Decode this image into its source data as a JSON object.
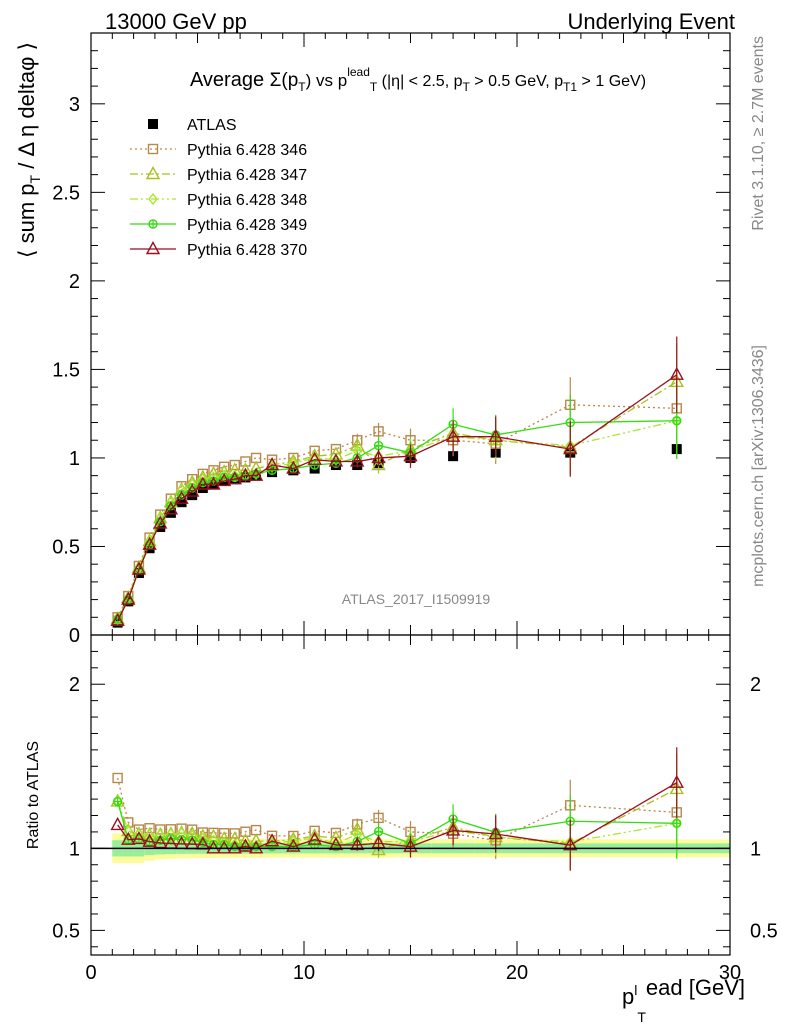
{
  "header": {
    "left": "13000 GeV pp",
    "right": "Underlying Event"
  },
  "side": {
    "rivet": "Rivet 3.1.10, ≥ 2.7M events",
    "mcplots": "mcplots.cern.ch [arXiv:1306.3436]"
  },
  "labels": {
    "title": "Average Σ(p_T) vs p_T^lead (|η| < 2.5, p_T > 0.5 GeV, p_T1 > 1 GeV)",
    "ylabel_main": "⟨ sum p_T / Δ η deltaφ ⟩",
    "ylabel_ratio": "Ratio to ATLAS",
    "xlabel": "p_T^lead [GeV]",
    "analysis": "ATLAS_2017_I1509919"
  },
  "colors": {
    "ATLAS": "#000000",
    "p346": "#b8874a",
    "p347": "#a6c21e",
    "p348": "#a8e62e",
    "p349": "#33dd11",
    "p370": "#9b0f1e",
    "band_outer": "#fdfc9a",
    "band_inner": "#98ee9a"
  },
  "chart_data": {
    "type": "scatter",
    "xlim": [
      0,
      30
    ],
    "ylim_main": [
      0,
      3.4
    ],
    "ylim_ratio": [
      0.35,
      2.3
    ],
    "x_ticks": [
      0,
      10,
      20,
      30
    ],
    "y_ticks_main": [
      0,
      0.5,
      1,
      1.5,
      2,
      2.5,
      3
    ],
    "y_ticks_ratio": [
      0.5,
      1,
      2
    ],
    "x": [
      1.25,
      1.75,
      2.25,
      2.75,
      3.25,
      3.75,
      4.25,
      4.75,
      5.25,
      5.75,
      6.25,
      6.75,
      7.25,
      7.75,
      8.5,
      9.5,
      10.5,
      11.5,
      12.5,
      13.5,
      15,
      17,
      19,
      22.5,
      27.5
    ],
    "legend_position": "top-left",
    "series": [
      {
        "name": "ATLAS",
        "key": "ATLAS",
        "marker": "filled-square",
        "values": [
          0.07,
          0.19,
          0.35,
          0.49,
          0.61,
          0.69,
          0.75,
          0.79,
          0.83,
          0.85,
          0.87,
          0.88,
          0.89,
          0.9,
          0.92,
          0.93,
          0.94,
          0.96,
          0.96,
          0.97,
          1.0,
          1.01,
          1.03,
          1.03,
          1.05
        ]
      },
      {
        "name": "Pythia 6.428 346",
        "key": "p346",
        "marker": "open-square",
        "dash": "2,3",
        "values": [
          0.1,
          0.22,
          0.39,
          0.55,
          0.68,
          0.77,
          0.84,
          0.88,
          0.91,
          0.93,
          0.95,
          0.96,
          0.98,
          1.0,
          0.99,
          1.0,
          1.04,
          1.05,
          1.1,
          1.15,
          1.1,
          1.1,
          1.08,
          1.3,
          1.28
        ]
      },
      {
        "name": "Pythia 6.428 347",
        "key": "p347",
        "marker": "open-triangle",
        "dash": "8,3,2,3",
        "values": [
          0.09,
          0.21,
          0.38,
          0.53,
          0.66,
          0.75,
          0.82,
          0.86,
          0.89,
          0.91,
          0.92,
          0.93,
          0.93,
          0.94,
          0.96,
          0.98,
          1.01,
          1.02,
          1.07,
          0.96,
          1.05,
          1.14,
          1.1,
          1.06,
          1.43
        ]
      },
      {
        "name": "Pythia 6.428 348",
        "key": "p348",
        "marker": "open-diamond",
        "dash": "8,3,2,3,2,3",
        "values": [
          0.09,
          0.21,
          0.38,
          0.53,
          0.66,
          0.75,
          0.82,
          0.85,
          0.88,
          0.89,
          0.9,
          0.9,
          0.9,
          0.91,
          0.95,
          0.97,
          1.0,
          0.99,
          1.04,
          1.01,
          1.04,
          1.12,
          1.1,
          1.07,
          1.21
        ]
      },
      {
        "name": "Pythia 6.428 349",
        "key": "p349",
        "marker": "circle-cross",
        "dash": "",
        "values": [
          0.09,
          0.2,
          0.37,
          0.51,
          0.64,
          0.73,
          0.79,
          0.83,
          0.86,
          0.87,
          0.89,
          0.89,
          0.9,
          0.91,
          0.93,
          0.94,
          0.96,
          0.97,
          1.0,
          1.07,
          1.03,
          1.19,
          1.13,
          1.2,
          1.21
        ]
      },
      {
        "name": "Pythia 6.428 370",
        "key": "p370",
        "marker": "open-triangle",
        "dash": "",
        "values": [
          0.08,
          0.2,
          0.37,
          0.51,
          0.63,
          0.71,
          0.77,
          0.81,
          0.85,
          0.85,
          0.87,
          0.88,
          0.9,
          0.9,
          0.96,
          0.94,
          0.99,
          0.98,
          0.98,
          1.0,
          1.01,
          1.12,
          1.12,
          1.05,
          1.47
        ]
      }
    ]
  }
}
